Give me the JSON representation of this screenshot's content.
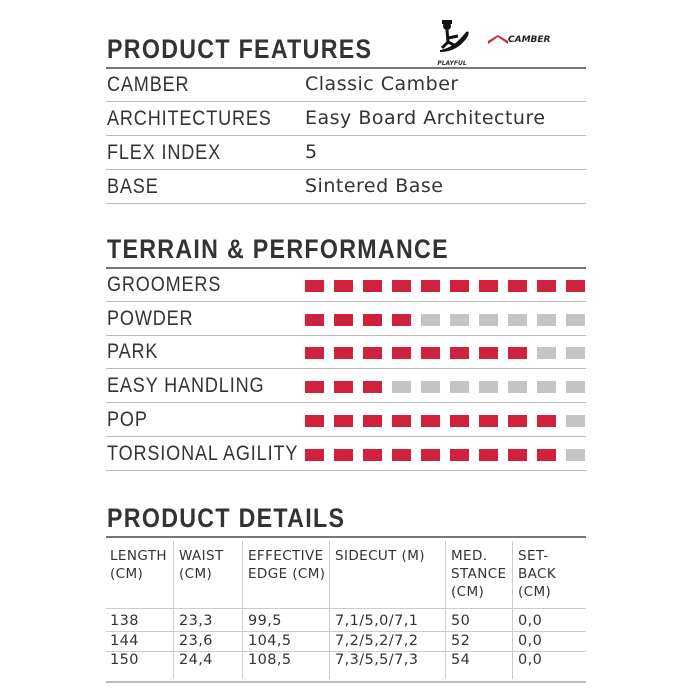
{
  "features": {
    "title": "PRODUCT FEATURES",
    "logos": {
      "playful": "PLAYFUL",
      "camber": "CAMBER"
    },
    "rows": [
      {
        "label": "CAMBER",
        "value": "Classic Camber"
      },
      {
        "label": "ARCHITECTURES",
        "value": "Easy Board Architecture"
      },
      {
        "label": "FLEX INDEX",
        "value": "5"
      },
      {
        "label": "BASE",
        "value": "Sintered Base"
      }
    ]
  },
  "terrain": {
    "title": "TERRAIN & PERFORMANCE",
    "max": 10,
    "colors": {
      "on": "#d0213d",
      "off": "#c4c4c4"
    },
    "rows": [
      {
        "label": "GROOMERS",
        "rating": 10
      },
      {
        "label": "POWDER",
        "rating": 4
      },
      {
        "label": "PARK",
        "rating": 8
      },
      {
        "label": "EASY HANDLING",
        "rating": 3
      },
      {
        "label": "POP",
        "rating": 9
      },
      {
        "label": "TORSIONAL AGILITY",
        "rating": 9
      }
    ]
  },
  "details": {
    "title": "PRODUCT DETAILS",
    "headers": [
      [
        "LENGTH",
        "(CM)"
      ],
      [
        "WAIST",
        "(CM)"
      ],
      [
        "EFFECTIVE",
        "EDGE (CM)"
      ],
      [
        "SIDECUT (M)"
      ],
      [
        "MED.",
        "STANCE",
        "(CM)"
      ],
      [
        "SET-",
        "BACK",
        "(CM)"
      ]
    ],
    "rows": [
      [
        "138",
        "23,3",
        "99,5",
        "7,1/5,0/7,1",
        "50",
        "0,0"
      ],
      [
        "144",
        "23,6",
        "104,5",
        "7,2/5,2/7,2",
        "52",
        "0,0"
      ],
      [
        "150",
        "24,4",
        "108,5",
        "7,3/5,5/7,3",
        "54",
        "0,0"
      ]
    ]
  }
}
